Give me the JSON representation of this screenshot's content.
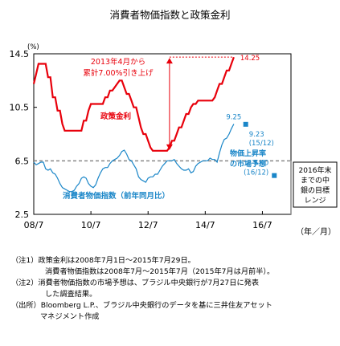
{
  "title": "消費者物価指数と政策金利",
  "chart_data": {
    "type": "line",
    "y_unit": "(%)",
    "x_unit": "（年／月）",
    "ylim": [
      2.5,
      14.5
    ],
    "y_ticks": [
      "2.5",
      "6.5",
      "10.5",
      "14.5"
    ],
    "x_ticks": [
      "08/7",
      "10/7",
      "12/7",
      "14/7",
      "16/7"
    ],
    "grid": false,
    "series": [
      {
        "name": "政策金利",
        "color": "#e8000b",
        "x": [
          "2008/07",
          "2008/08",
          "2008/09",
          "2008/10",
          "2008/11",
          "2008/12",
          "2009/01",
          "2009/02",
          "2009/03",
          "2009/04",
          "2009/05",
          "2009/06",
          "2009/07",
          "2009/08",
          "2009/09",
          "2009/10",
          "2009/11",
          "2009/12",
          "2010/01",
          "2010/02",
          "2010/03",
          "2010/04",
          "2010/05",
          "2010/06",
          "2010/07",
          "2010/08",
          "2010/09",
          "2010/10",
          "2010/11",
          "2010/12",
          "2011/01",
          "2011/02",
          "2011/03",
          "2011/04",
          "2011/05",
          "2011/06",
          "2011/07",
          "2011/08",
          "2011/09",
          "2011/10",
          "2011/11",
          "2011/12",
          "2012/01",
          "2012/02",
          "2012/03",
          "2012/04",
          "2012/05",
          "2012/06",
          "2012/07",
          "2012/08",
          "2012/09",
          "2012/10",
          "2012/11",
          "2012/12",
          "2013/01",
          "2013/02",
          "2013/03",
          "2013/04",
          "2013/05",
          "2013/06",
          "2013/07",
          "2013/08",
          "2013/09",
          "2013/10",
          "2013/11",
          "2013/12",
          "2014/01",
          "2014/02",
          "2014/03",
          "2014/04",
          "2014/05",
          "2014/06",
          "2014/07",
          "2014/08",
          "2014/09",
          "2014/10",
          "2014/11",
          "2014/12",
          "2015/01",
          "2015/02",
          "2015/03",
          "2015/04",
          "2015/05",
          "2015/06",
          "2015/07"
        ],
        "values": [
          12.25,
          13.0,
          13.75,
          13.75,
          13.75,
          13.75,
          12.75,
          12.75,
          11.25,
          11.25,
          10.25,
          10.25,
          9.25,
          8.75,
          8.75,
          8.75,
          8.75,
          8.75,
          8.75,
          8.75,
          8.75,
          9.5,
          9.5,
          10.25,
          10.75,
          10.75,
          10.75,
          10.75,
          10.75,
          10.75,
          11.25,
          11.25,
          11.75,
          11.75,
          12.0,
          12.25,
          12.5,
          12.5,
          12.0,
          11.5,
          11.5,
          11.0,
          10.5,
          10.5,
          9.75,
          9.0,
          8.5,
          8.5,
          8.0,
          7.5,
          7.25,
          7.25,
          7.25,
          7.25,
          7.25,
          7.25,
          7.25,
          7.5,
          8.0,
          8.0,
          8.5,
          9.0,
          9.0,
          9.5,
          10.0,
          10.0,
          10.5,
          10.75,
          10.75,
          11.0,
          11.0,
          11.0,
          11.0,
          11.0,
          11.0,
          11.0,
          11.25,
          11.75,
          12.25,
          12.25,
          12.75,
          13.25,
          13.25,
          13.75,
          14.25
        ]
      },
      {
        "name": "消費者物価指数（前年同月比）",
        "color": "#1a86c8",
        "x": [
          "2008/07",
          "2008/08",
          "2008/09",
          "2008/10",
          "2008/11",
          "2008/12",
          "2009/01",
          "2009/02",
          "2009/03",
          "2009/04",
          "2009/05",
          "2009/06",
          "2009/07",
          "2009/08",
          "2009/09",
          "2009/10",
          "2009/11",
          "2009/12",
          "2010/01",
          "2010/02",
          "2010/03",
          "2010/04",
          "2010/05",
          "2010/06",
          "2010/07",
          "2010/08",
          "2010/09",
          "2010/10",
          "2010/11",
          "2010/12",
          "2011/01",
          "2011/02",
          "2011/03",
          "2011/04",
          "2011/05",
          "2011/06",
          "2011/07",
          "2011/08",
          "2011/09",
          "2011/10",
          "2011/11",
          "2011/12",
          "2012/01",
          "2012/02",
          "2012/03",
          "2012/04",
          "2012/05",
          "2012/06",
          "2012/07",
          "2012/08",
          "2012/09",
          "2012/10",
          "2012/11",
          "2012/12",
          "2013/01",
          "2013/02",
          "2013/03",
          "2013/04",
          "2013/05",
          "2013/06",
          "2013/07",
          "2013/08",
          "2013/09",
          "2013/10",
          "2013/11",
          "2013/12",
          "2014/01",
          "2014/02",
          "2014/03",
          "2014/04",
          "2014/05",
          "2014/06",
          "2014/07",
          "2014/08",
          "2014/09",
          "2014/10",
          "2014/11",
          "2014/12",
          "2015/01",
          "2015/02",
          "2015/03",
          "2015/04",
          "2015/05",
          "2015/06",
          "2015/07"
        ],
        "values": [
          6.4,
          6.2,
          6.3,
          6.4,
          6.4,
          5.9,
          5.8,
          5.9,
          5.6,
          5.5,
          5.2,
          4.8,
          4.5,
          4.4,
          4.3,
          4.2,
          4.2,
          4.3,
          4.6,
          4.8,
          5.2,
          5.3,
          5.2,
          4.8,
          4.6,
          4.5,
          4.7,
          5.2,
          5.6,
          5.9,
          6.0,
          6.0,
          6.3,
          6.5,
          6.6,
          6.7,
          6.9,
          7.2,
          7.3,
          7.0,
          6.6,
          6.5,
          6.2,
          5.9,
          5.3,
          5.1,
          5.0,
          4.9,
          5.2,
          5.3,
          5.3,
          5.5,
          5.5,
          5.8,
          6.1,
          6.3,
          6.5,
          6.5,
          6.5,
          6.6,
          6.3,
          6.1,
          5.9,
          5.8,
          5.8,
          5.9,
          5.6,
          5.7,
          6.1,
          6.3,
          6.4,
          6.5,
          6.5,
          6.5,
          6.7,
          6.6,
          6.6,
          6.4,
          7.1,
          7.7,
          8.1,
          8.2,
          8.5,
          8.9,
          9.25
        ]
      }
    ],
    "forecast_points": [
      {
        "x": "2015/12",
        "value": 9.23,
        "label": "9.23",
        "sub": "(15/12)"
      },
      {
        "x": "2016/12",
        "value": 5.4,
        "label": "5.40",
        "sub": "(16/12)"
      }
    ],
    "target_range": [
      2.5,
      6.5
    ],
    "labels": {
      "policy_rate": "政策金利",
      "cpi": "消費者物価指数（前年同月比）",
      "policy_last": "14.25",
      "cpi_last": "9.25",
      "cumulative_line1": "2013年4月から",
      "cumulative_line2": "累計7.00%引き上げ",
      "market_forecast_line1": "物価上昇率",
      "market_forecast_line2": "の市場予想",
      "target_lines": [
        "2016年末",
        "までの中",
        "銀の目標",
        "レンジ"
      ]
    }
  },
  "notes": [
    "（注1）政策金利は2008年7月1日～2015年7月29日。",
    "消費者物価指数は2008年7月～2015年7月（2015年7月は月前半）。",
    "（注2）消費者物価指数の市場予想は、ブラジル中央銀行が7月27日に発表",
    "した調査結果。",
    "（出所）Bloomberg L.P.、ブラジル中央銀行のデータを基に三井住友アセット",
    "マネジメント作成"
  ]
}
